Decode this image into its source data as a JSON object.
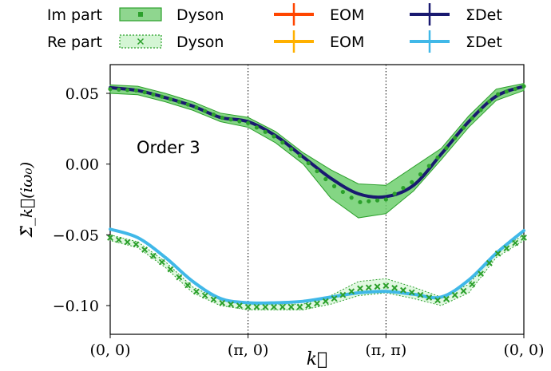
{
  "chart_data": {
    "type": "line",
    "xlabel": "k⃗",
    "ylabel": "Σ̃_k⃗(iω₀)",
    "annotation": "Order 3",
    "xlim": [
      0,
      3
    ],
    "ylim": [
      -0.12,
      0.065
    ],
    "x_ticks": [
      {
        "value": 0,
        "label": "(0, 0)"
      },
      {
        "value": 1,
        "label": "(π, 0)"
      },
      {
        "value": 2,
        "label": "(π, π)"
      },
      {
        "value": 3,
        "label": "(0, 0)"
      }
    ],
    "y_ticks": [
      {
        "value": 0.05,
        "label": "0.05"
      },
      {
        "value": 0.0,
        "label": "0.00"
      },
      {
        "value": -0.05,
        "label": "−0.05"
      },
      {
        "value": -0.1,
        "label": "−0.10"
      }
    ],
    "vlines": [
      1,
      2
    ],
    "legend": {
      "placement": "top",
      "row_labels": [
        "Im part",
        "Re part"
      ],
      "entries": [
        {
          "row": 0,
          "label": "Dyson",
          "style": "band-dot",
          "color": "#2ca02c",
          "fill": "#8fd68f"
        },
        {
          "row": 0,
          "label": "EOM",
          "style": "line-cross",
          "color": "#ff4500"
        },
        {
          "row": 0,
          "label": "ΣDet",
          "style": "line-cross",
          "color": "#191970"
        },
        {
          "row": 1,
          "label": "Dyson",
          "style": "band-x",
          "color": "#2ca02c",
          "fill": "#ccf2cc"
        },
        {
          "row": 1,
          "label": "EOM",
          "style": "line-cross",
          "color": "#ffb000"
        },
        {
          "row": 1,
          "label": "ΣDet",
          "style": "line-cross",
          "color": "#40b8e8"
        }
      ]
    },
    "series": [
      {
        "name": "ΣDet",
        "part": "Im",
        "color": "#191970",
        "x": [
          0,
          0.2,
          0.4,
          0.6,
          0.8,
          1.0,
          1.2,
          1.4,
          1.6,
          1.8,
          2.0,
          2.2,
          2.4,
          2.6,
          2.8,
          3.0
        ],
        "y": [
          0.054,
          0.052,
          0.047,
          0.041,
          0.033,
          0.03,
          0.02,
          0.005,
          -0.01,
          -0.021,
          -0.023,
          -0.015,
          0.007,
          0.03,
          0.048,
          0.055
        ]
      },
      {
        "name": "ΣDet",
        "part": "Re",
        "color": "#40b8e8",
        "x": [
          0,
          0.2,
          0.4,
          0.6,
          0.8,
          1.0,
          1.2,
          1.4,
          1.6,
          1.8,
          2.0,
          2.2,
          2.4,
          2.6,
          2.8,
          3.0
        ],
        "y": [
          -0.046,
          -0.052,
          -0.066,
          -0.083,
          -0.095,
          -0.098,
          -0.098,
          -0.097,
          -0.094,
          -0.091,
          -0.09,
          -0.092,
          -0.094,
          -0.082,
          -0.063,
          -0.047
        ]
      },
      {
        "name": "Dyson",
        "part": "Im",
        "color": "#2ca02c",
        "x": [
          0,
          0.2,
          0.4,
          0.6,
          0.8,
          1.0,
          1.2,
          1.4,
          1.6,
          1.8,
          2.0,
          2.2,
          2.4,
          2.6,
          2.8,
          3.0
        ],
        "y": [
          0.053,
          0.052,
          0.047,
          0.041,
          0.033,
          0.029,
          0.019,
          0.004,
          -0.014,
          -0.027,
          -0.025,
          -0.012,
          0.007,
          0.03,
          0.049,
          0.055
        ],
        "upper": [
          0.056,
          0.055,
          0.05,
          0.044,
          0.036,
          0.033,
          0.023,
          0.008,
          -0.004,
          -0.014,
          -0.015,
          -0.002,
          0.011,
          0.034,
          0.053,
          0.057
        ],
        "lower": [
          0.05,
          0.049,
          0.044,
          0.038,
          0.03,
          0.026,
          0.015,
          0.0,
          -0.024,
          -0.038,
          -0.035,
          -0.019,
          0.003,
          0.026,
          0.045,
          0.052
        ]
      },
      {
        "name": "Dyson",
        "part": "Re",
        "color": "#2ca02c",
        "x": [
          0,
          0.2,
          0.4,
          0.6,
          0.8,
          1.0,
          1.2,
          1.4,
          1.6,
          1.8,
          2.0,
          2.2,
          2.4,
          2.6,
          2.8,
          3.0
        ],
        "y": [
          -0.052,
          -0.057,
          -0.071,
          -0.089,
          -0.098,
          -0.101,
          -0.101,
          -0.101,
          -0.096,
          -0.088,
          -0.086,
          -0.091,
          -0.097,
          -0.088,
          -0.064,
          -0.052
        ],
        "upper": [
          -0.05,
          -0.055,
          -0.069,
          -0.087,
          -0.096,
          -0.099,
          -0.099,
          -0.099,
          -0.093,
          -0.083,
          -0.081,
          -0.087,
          -0.094,
          -0.085,
          -0.062,
          -0.05
        ],
        "lower": [
          -0.054,
          -0.059,
          -0.073,
          -0.091,
          -0.1,
          -0.103,
          -0.103,
          -0.103,
          -0.099,
          -0.093,
          -0.091,
          -0.095,
          -0.1,
          -0.091,
          -0.066,
          -0.054
        ]
      }
    ]
  }
}
